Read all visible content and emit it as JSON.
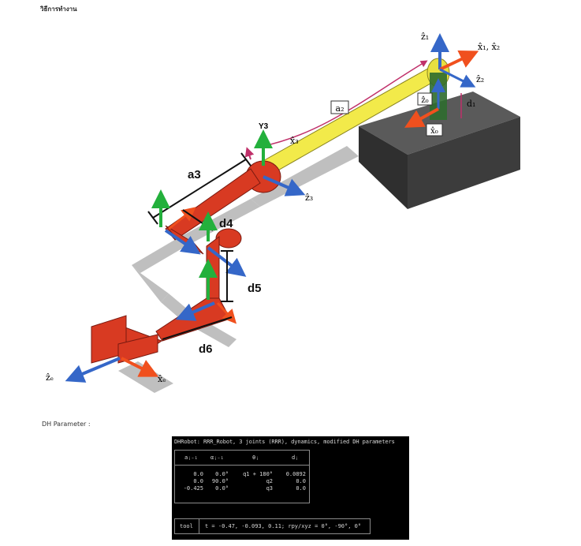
{
  "page": {
    "heading": "วิธีการทำงาน",
    "dh_caption": "DH Parameter :"
  },
  "figure": {
    "labels": {
      "z1": "ẑ₁",
      "x1x2": "x̂₁, x̂₂",
      "z2": "ẑ₂",
      "z0": "ẑ₀",
      "x0": "x̂₀",
      "d1": "d₁",
      "a2": "a₂",
      "y3": "Y3",
      "x3": "x̂₃",
      "z3": "ẑ₃",
      "a3": "a3",
      "d4": "d4",
      "d5": "d5",
      "d6": "d6",
      "ze": "ẑₑ",
      "xe": "x̂ₑ"
    },
    "colors": {
      "base": "#3c3c3c",
      "link_yellow": "#f2ea4a",
      "link_red": "#d83a22",
      "axis_z": "#3567c8",
      "axis_x": "#f0501e",
      "axis_y": "#23b03c",
      "shadow": "#b4b4b4",
      "dim_line": "#c0306a"
    }
  },
  "dh": {
    "title": "DHRobot: RRR_Robot, 3 joints (RRR), dynamics, modified DH parameters",
    "headers": [
      "aⱼ₋₁",
      "αⱼ₋₁",
      "θⱼ",
      "dⱼ"
    ],
    "col_a": "0.0\n0.0\n-0.425",
    "col_alpha": "0.0°\n90.0°\n0.0°",
    "col_theta": "q1 + 180°\nq2\nq3",
    "col_d": "0.0892\n0.0\n0.0",
    "tool_label": "tool",
    "tool_value": "t = -0.47, -0.093, 0.11; rpy/xyz = 0°, -90°, 0°"
  }
}
